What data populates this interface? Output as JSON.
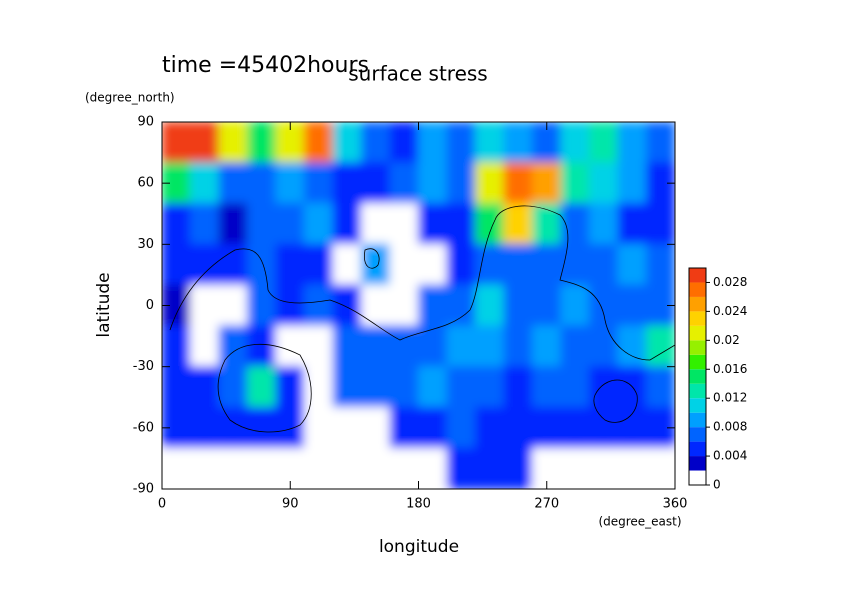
{
  "chart_data": {
    "type": "contour",
    "title": "surface stress",
    "subtitle": "time =45402hours",
    "x_label": "longitude",
    "x_units": "(degree_east)",
    "y_label": "latitude",
    "y_units": "(degree_north)",
    "xlim": [
      0,
      360
    ],
    "xticks": [
      0,
      90,
      180,
      270,
      360
    ],
    "ylim": [
      -90,
      90
    ],
    "yticks": [
      -90,
      -60,
      -30,
      0,
      30,
      60,
      90
    ],
    "x": [
      10,
      30,
      50,
      70,
      90,
      110,
      130,
      150,
      170,
      190,
      210,
      230,
      250,
      270,
      290,
      310,
      330,
      350
    ],
    "y": [
      80,
      60,
      40,
      20,
      0,
      -20,
      -40,
      -60,
      -80
    ],
    "z": [
      [
        0.03,
        0.03,
        0.02,
        0.014,
        0.02,
        0.026,
        0.01,
        0.006,
        0.004,
        0.008,
        0.006,
        0.01,
        0.008,
        0.006,
        0.01,
        0.012,
        0.008,
        0.006
      ],
      [
        0.014,
        0.01,
        0.006,
        0.006,
        0.008,
        0.006,
        0.004,
        0.004,
        0.006,
        0.008,
        0.006,
        0.02,
        0.026,
        0.024,
        0.012,
        0.01,
        0.008,
        0.004
      ],
      [
        0.004,
        0.006,
        0.003,
        0.006,
        0.006,
        0.008,
        0.004,
        0.001,
        0.001,
        0.004,
        0.004,
        0.014,
        0.022,
        0.012,
        0.006,
        0.008,
        0.004,
        0.004
      ],
      [
        0.004,
        0.004,
        0.004,
        0.006,
        0.004,
        0.004,
        0.001,
        0.008,
        0.001,
        0.001,
        0.004,
        0.006,
        0.006,
        0.006,
        0.006,
        0.006,
        0.008,
        0.006
      ],
      [
        0.002,
        0.001,
        0.001,
        0.006,
        0.004,
        0.006,
        0.004,
        0.001,
        0.001,
        0.006,
        0.006,
        0.01,
        0.006,
        0.006,
        0.008,
        0.006,
        0.006,
        0.006
      ],
      [
        0.004,
        0.001,
        0.006,
        0.004,
        0.001,
        0.001,
        0.006,
        0.006,
        0.006,
        0.006,
        0.008,
        0.008,
        0.006,
        0.008,
        0.006,
        0.006,
        0.008,
        0.012
      ],
      [
        0.004,
        0.004,
        0.006,
        0.012,
        0.004,
        0.001,
        0.006,
        0.006,
        0.006,
        0.008,
        0.006,
        0.006,
        0.004,
        0.006,
        0.006,
        0.004,
        0.004,
        0.006
      ],
      [
        0.004,
        0.004,
        0.004,
        0.004,
        0.004,
        0.001,
        0.001,
        0.001,
        0.004,
        0.004,
        0.006,
        0.004,
        0.004,
        0.004,
        0.004,
        0.004,
        0.004,
        0.004
      ],
      [
        0.001,
        0.001,
        0.001,
        0.001,
        0.001,
        0.001,
        0.001,
        0.001,
        0.001,
        0.001,
        0.004,
        0.004,
        0.004,
        0.001,
        0.001,
        0.001,
        0.001,
        0.001
      ]
    ],
    "clim": [
      0,
      0.03
    ],
    "levels": [
      0,
      0.002,
      0.004,
      0.006,
      0.008,
      0.01,
      0.012,
      0.014,
      0.016,
      0.018,
      0.02,
      0.022,
      0.024,
      0.026,
      0.028,
      0.03
    ],
    "colors": [
      "#ffffff",
      "#0000c8",
      "#0028ff",
      "#0064ff",
      "#00a0ff",
      "#00d2e6",
      "#00e6aa",
      "#00e664",
      "#32f000",
      "#96f000",
      "#e6f000",
      "#ffd200",
      "#ffa000",
      "#ff6e00",
      "#f03c14"
    ],
    "cbarticks": [
      0,
      0.004,
      0.008,
      0.012,
      0.016,
      0.02,
      0.024,
      0.028
    ]
  }
}
